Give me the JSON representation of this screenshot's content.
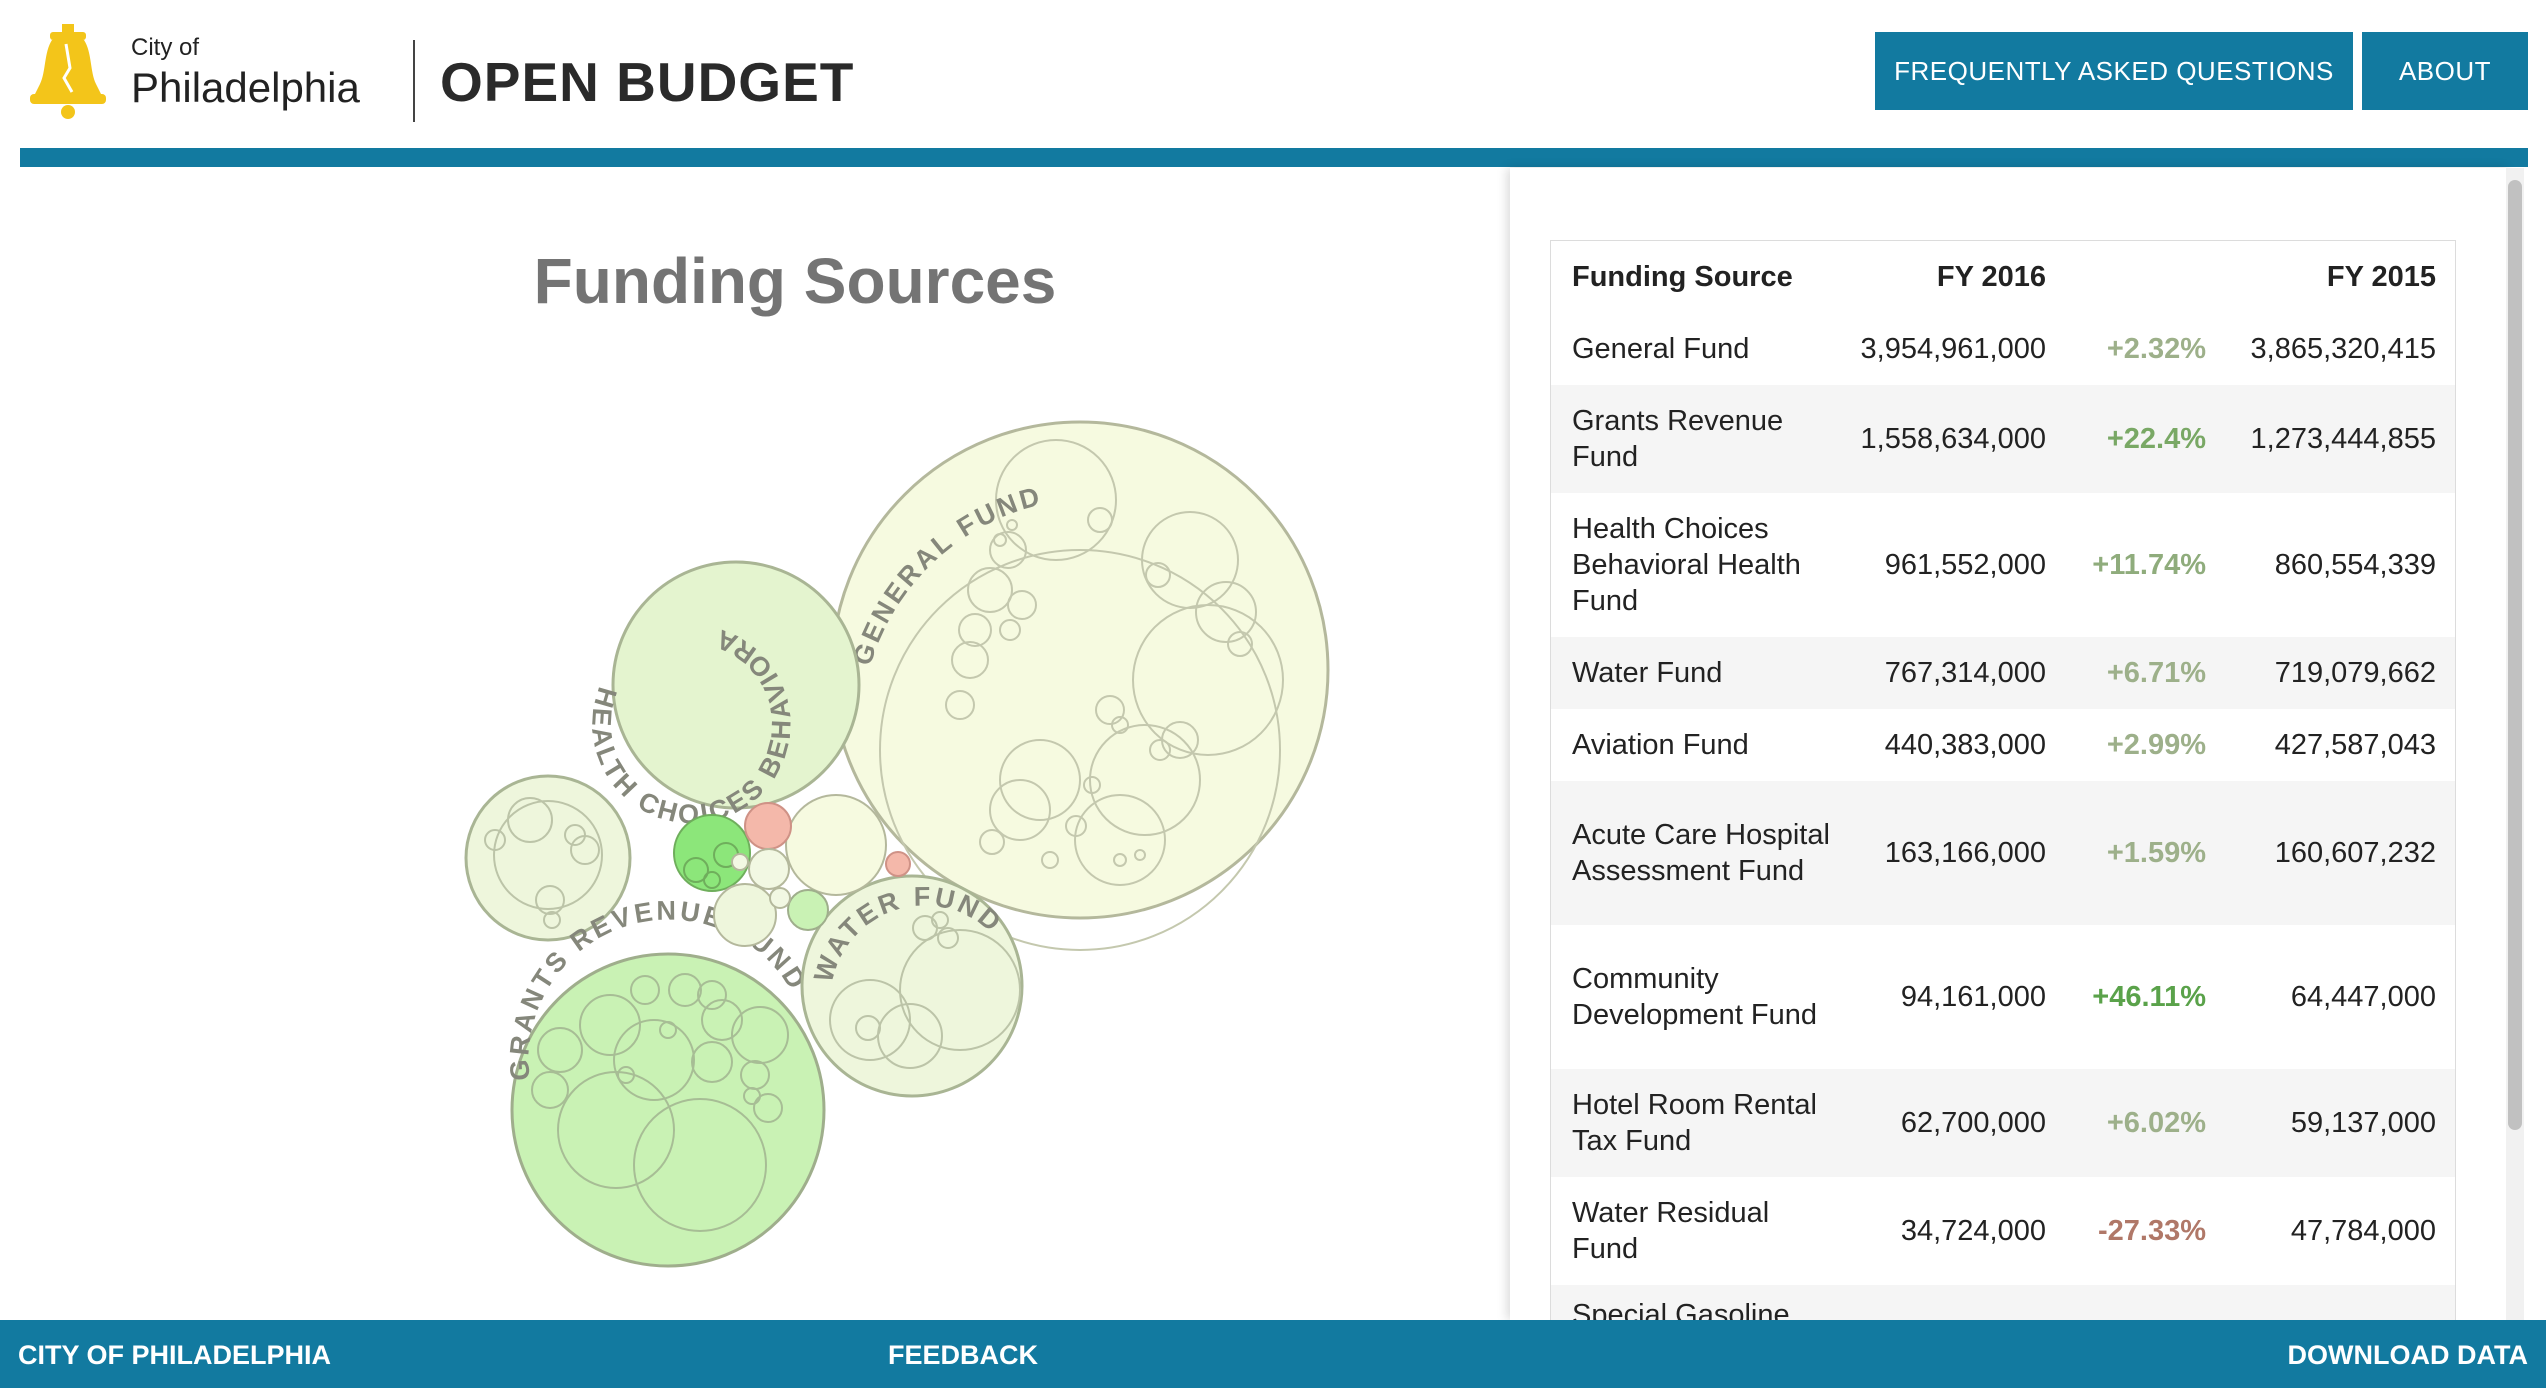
{
  "header": {
    "city_of": "City of",
    "city_name": "Philadelphia",
    "title": "OPEN BUDGET",
    "nav": {
      "faq": "FREQUENTLY ASKED QUESTIONS",
      "about": "ABOUT"
    }
  },
  "chart": {
    "title": "Funding Sources",
    "bubble_labels": {
      "general": "GENERAL FUND",
      "health": "HEALTH CHOICES BEHAVIORA",
      "grants": "GRANTS REVENUE FUND",
      "water": "WATER FUND"
    }
  },
  "chart_data": {
    "type": "bubble",
    "title": "Funding Sources",
    "series": [
      {
        "name": "General Fund",
        "fy2016": 3954961000,
        "fy2015": 3865320415,
        "change_pct": 2.32
      },
      {
        "name": "Grants Revenue Fund",
        "fy2016": 1558634000,
        "fy2015": 1273444855,
        "change_pct": 22.4
      },
      {
        "name": "Health Choices Behavioral Health Fund",
        "fy2016": 961552000,
        "fy2015": 860554339,
        "change_pct": 11.74
      },
      {
        "name": "Water Fund",
        "fy2016": 767314000,
        "fy2015": 719079662,
        "change_pct": 6.71
      },
      {
        "name": "Aviation Fund",
        "fy2016": 440383000,
        "fy2015": 427587043,
        "change_pct": 2.99
      },
      {
        "name": "Acute Care Hospital Assessment Fund",
        "fy2016": 163166000,
        "fy2015": 160607232,
        "change_pct": 1.59
      },
      {
        "name": "Community Development Fund",
        "fy2016": 94161000,
        "fy2015": 64447000,
        "change_pct": 46.11
      },
      {
        "name": "Hotel Room Rental Tax Fund",
        "fy2016": 62700000,
        "fy2015": 59137000,
        "change_pct": 6.02
      },
      {
        "name": "Water Residual Fund",
        "fy2016": 34724000,
        "fy2015": 47784000,
        "change_pct": -27.33
      }
    ]
  },
  "table": {
    "headers": {
      "source": "Funding Source",
      "fy2016": "FY 2016",
      "change": "",
      "fy2015": "FY 2015"
    },
    "rows": [
      {
        "source": "General Fund",
        "fy2016": "3,954,961,000",
        "change": "+2.32%",
        "fy2015": "3,865,320,415",
        "change_color": "#9db08a"
      },
      {
        "source": "Grants Revenue Fund",
        "fy2016": "1,558,634,000",
        "change": "+22.4%",
        "fy2015": "1,273,444,855",
        "change_color": "#79a865"
      },
      {
        "source": "Health Choices Behavioral Health Fund",
        "fy2016": "961,552,000",
        "change": "+11.74%",
        "fy2015": "860,554,339",
        "change_color": "#8fac7c"
      },
      {
        "source": "Water Fund",
        "fy2016": "767,314,000",
        "change": "+6.71%",
        "fy2015": "719,079,662",
        "change_color": "#9db08a"
      },
      {
        "source": "Aviation Fund",
        "fy2016": "440,383,000",
        "change": "+2.99%",
        "fy2015": "427,587,043",
        "change_color": "#9db08a"
      },
      {
        "source": "Acute Care Hospital Assessment Fund",
        "fy2016": "163,166,000",
        "change": "+1.59%",
        "fy2015": "160,607,232",
        "change_color": "#9db08a"
      },
      {
        "source": "Community Development Fund",
        "fy2016": "94,161,000",
        "change": "+46.11%",
        "fy2015": "64,447,000",
        "change_color": "#5aa24a"
      },
      {
        "source": "Hotel Room Rental Tax Fund",
        "fy2016": "62,700,000",
        "change": "+6.02%",
        "fy2015": "59,137,000",
        "change_color": "#9db08a"
      },
      {
        "source": "Water Residual Fund",
        "fy2016": "34,724,000",
        "change": "-27.33%",
        "fy2015": "47,784,000",
        "change_color": "#b07868"
      }
    ],
    "next_row_partial": "Special Gasoline"
  },
  "footer": {
    "left": "CITY OF PHILADELPHIA",
    "mid": "FEEDBACK",
    "right": "DOWNLOAD DATA"
  },
  "colors": {
    "brand": "#127aa0",
    "logo_yellow": "#f3c51a"
  }
}
